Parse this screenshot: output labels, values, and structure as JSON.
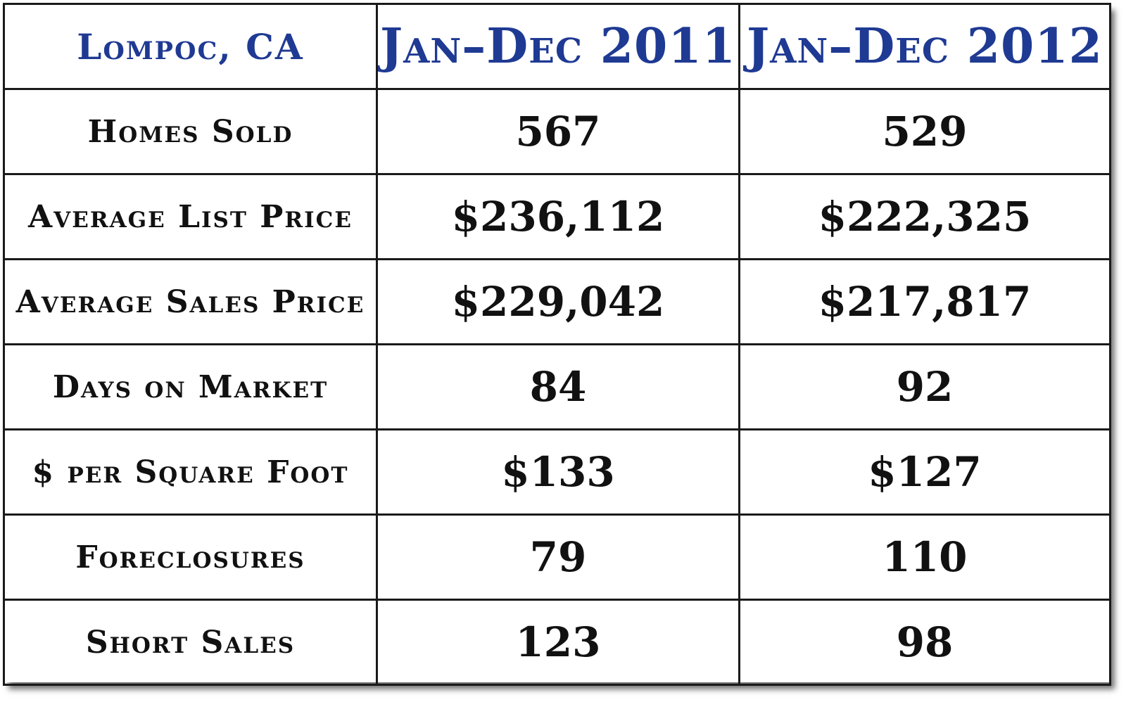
{
  "colors": {
    "header_text": "#1f3a93",
    "body_text": "#111111",
    "border": "#1a1a1a",
    "background": "#ffffff"
  },
  "table": {
    "location": "Lompoc, CA",
    "periods": [
      "Jan–Dec 2011",
      "Jan–Dec 2012"
    ],
    "rows": [
      {
        "label": "Homes Sold",
        "values": [
          "567",
          "529"
        ]
      },
      {
        "label": "Average List Price",
        "values": [
          "$236,112",
          "$222,325"
        ]
      },
      {
        "label": "Average Sales Price",
        "values": [
          "$229,042",
          "$217,817"
        ]
      },
      {
        "label": "Days on Market",
        "values": [
          "84",
          "92"
        ]
      },
      {
        "label": "$ per Square Foot",
        "values": [
          "$133",
          "$127"
        ]
      },
      {
        "label": "Foreclosures",
        "values": [
          "79",
          "110"
        ]
      },
      {
        "label": "Short Sales",
        "values": [
          "123",
          "98"
        ]
      }
    ]
  }
}
